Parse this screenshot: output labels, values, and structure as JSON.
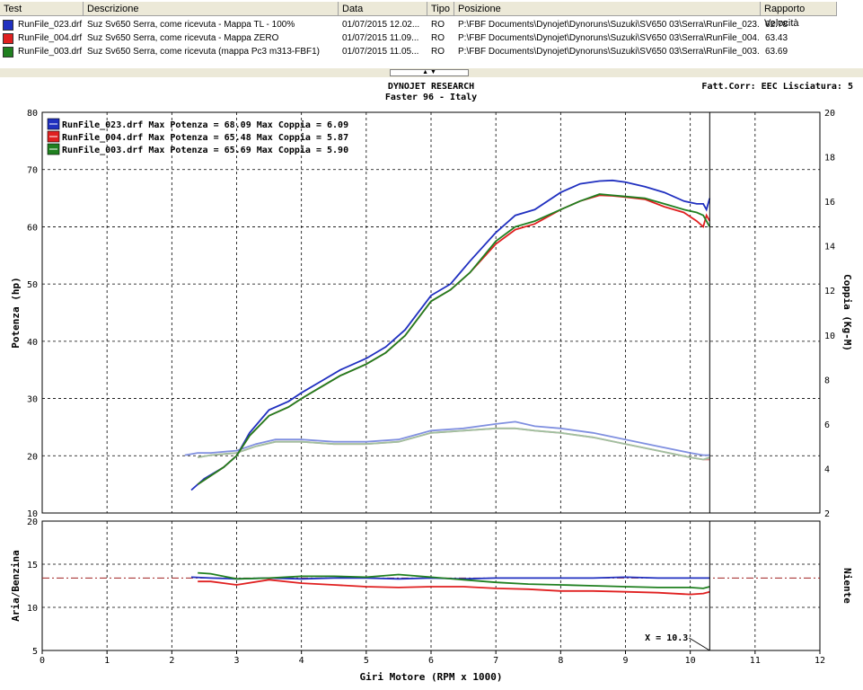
{
  "table": {
    "headers": [
      "Test",
      "Descrizione",
      "Data",
      "Tipo",
      "Posizione",
      "Rapporto Velocità"
    ],
    "rows": [
      {
        "test": "RunFile_023.drf",
        "desc": "Suz Sv650 Serra, come ricevuta - Mappa TL - 100%",
        "date": "01/07/2015 12.02...",
        "tipo": "RO",
        "pos": "P:\\FBF Documents\\Dynojet\\Dynoruns\\Suzuki\\SV650 03\\Serra\\RunFile_023....",
        "ratio": "62.78",
        "color": "#2030c0"
      },
      {
        "test": "RunFile_004.drf",
        "desc": "Suz Sv650 Serra, come ricevuta - Mappa ZERO",
        "date": "01/07/2015 11.09...",
        "tipo": "RO",
        "pos": "P:\\FBF Documents\\Dynojet\\Dynoruns\\Suzuki\\SV650 03\\Serra\\RunFile_004....",
        "ratio": "63.43",
        "color": "#e02020"
      },
      {
        "test": "RunFile_003.drf",
        "desc": "Suz Sv650 Serra, come ricevuta (mappa Pc3 m313-FBF1)",
        "date": "01/07/2015 11.05...",
        "tipo": "RO",
        "pos": "P:\\FBF Documents\\Dynojet\\Dynoruns\\Suzuki\\SV650 03\\Serra\\RunFile_003....",
        "ratio": "63.69",
        "color": "#208020"
      }
    ]
  },
  "splitter_label": "▲ ▼",
  "chart_data": {
    "type": "line",
    "title": "DYNOJET RESEARCH",
    "subtitle": "Faster 96 - Italy",
    "info": "Fatt.Corr: EEC  Lisciatura: 5",
    "xlabel": "Giri Motore (RPM x 1000)",
    "xlim": [
      0,
      12
    ],
    "xticks": [
      "0",
      "1",
      "2",
      "3",
      "4",
      "5",
      "6",
      "7",
      "8",
      "9",
      "10",
      "11",
      "12"
    ],
    "top": {
      "ylabel_left": "Potenza (hp)",
      "ylabel_right": "Coppia (Kg-M)",
      "ylim_left": [
        10,
        80
      ],
      "ylim_right": [
        2,
        20
      ],
      "yticks_left": [
        "10",
        "20",
        "30",
        "40",
        "50",
        "60",
        "70",
        "80"
      ],
      "yticks_right": [
        "2",
        "4",
        "6",
        "8",
        "10",
        "12",
        "14",
        "16",
        "18",
        "20"
      ],
      "legend": [
        "RunFile_023.drf Max Potenza = 68.09 Max Coppia = 6.09",
        "RunFile_004.drf Max Potenza = 65.48 Max Coppia = 5.87",
        "RunFile_003.drf Max Potenza = 65.69 Max Coppia = 5.90"
      ],
      "legend_position": "top-left",
      "power_series": [
        {
          "color": "#2030c0",
          "x": [
            2.3,
            2.5,
            2.8,
            3.0,
            3.2,
            3.5,
            3.8,
            4.0,
            4.3,
            4.6,
            5.0,
            5.3,
            5.6,
            6.0,
            6.3,
            6.6,
            7.0,
            7.3,
            7.6,
            8.0,
            8.3,
            8.6,
            8.8,
            9.0,
            9.3,
            9.6,
            9.9,
            10.1,
            10.2,
            10.25,
            10.3
          ],
          "y": [
            14,
            16,
            18,
            20,
            24,
            28,
            29.5,
            31,
            33,
            35,
            37,
            39,
            42,
            48,
            50,
            54,
            59,
            62,
            63,
            66,
            67.5,
            68,
            68.1,
            67.8,
            67,
            66,
            64.5,
            64,
            64,
            63,
            65
          ]
        },
        {
          "color": "#e02020",
          "x": [
            2.4,
            2.6,
            2.8,
            3.0,
            3.2,
            3.5,
            3.8,
            4.0,
            4.3,
            4.6,
            5.0,
            5.3,
            5.6,
            6.0,
            6.3,
            6.6,
            7.0,
            7.3,
            7.6,
            8.0,
            8.3,
            8.6,
            8.8,
            9.0,
            9.3,
            9.6,
            9.9,
            10.1,
            10.2,
            10.25,
            10.3
          ],
          "y": [
            15,
            16.5,
            18,
            20,
            23.5,
            27,
            28.5,
            30,
            32,
            34,
            36,
            38,
            41,
            47,
            49,
            52,
            57,
            59.5,
            60.5,
            63,
            64.5,
            65.5,
            65.4,
            65.2,
            64.8,
            63.5,
            62.5,
            61,
            60,
            62,
            61
          ]
        },
        {
          "color": "#208020",
          "x": [
            2.4,
            2.6,
            2.8,
            3.0,
            3.2,
            3.5,
            3.8,
            4.0,
            4.3,
            4.6,
            5.0,
            5.3,
            5.6,
            6.0,
            6.3,
            6.6,
            7.0,
            7.3,
            7.6,
            8.0,
            8.3,
            8.6,
            8.8,
            9.0,
            9.3,
            9.6,
            9.9,
            10.1,
            10.2,
            10.3
          ],
          "y": [
            15,
            16.5,
            18,
            20,
            23.5,
            27,
            28.5,
            30,
            32,
            34,
            36,
            38,
            41,
            47,
            49,
            52,
            57.5,
            60,
            61,
            63,
            64.5,
            65.7,
            65.5,
            65.3,
            65,
            64,
            63,
            62.5,
            62,
            60
          ]
        }
      ],
      "torque_series": [
        {
          "color": "#8090e0",
          "x": [
            2.2,
            2.4,
            2.6,
            3.0,
            3.3,
            3.6,
            4.0,
            4.5,
            5.0,
            5.5,
            6.0,
            6.5,
            7.0,
            7.3,
            7.6,
            8.0,
            8.5,
            9.0,
            9.5,
            10.0,
            10.2,
            10.3
          ],
          "y": [
            4.6,
            4.7,
            4.7,
            4.8,
            5.1,
            5.3,
            5.3,
            5.2,
            5.2,
            5.3,
            5.7,
            5.8,
            6.0,
            6.1,
            5.9,
            5.8,
            5.6,
            5.3,
            5.0,
            4.7,
            4.6,
            4.6
          ]
        },
        {
          "color": "#e09090",
          "x": [
            2.4,
            2.6,
            3.0,
            3.3,
            3.6,
            4.0,
            4.5,
            5.0,
            5.5,
            6.0,
            6.5,
            7.0,
            7.3,
            7.6,
            8.0,
            8.5,
            9.0,
            9.5,
            10.0,
            10.2,
            10.3
          ],
          "y": [
            4.5,
            4.6,
            4.7,
            5.0,
            5.2,
            5.2,
            5.1,
            5.1,
            5.2,
            5.6,
            5.7,
            5.8,
            5.8,
            5.7,
            5.6,
            5.4,
            5.1,
            4.8,
            4.5,
            4.4,
            4.4
          ]
        },
        {
          "color": "#a0c0a0",
          "x": [
            2.4,
            2.6,
            3.0,
            3.3,
            3.6,
            4.0,
            4.5,
            5.0,
            5.5,
            6.0,
            6.5,
            7.0,
            7.3,
            7.6,
            8.0,
            8.5,
            9.0,
            9.5,
            10.0,
            10.2,
            10.3
          ],
          "y": [
            4.5,
            4.6,
            4.7,
            5.0,
            5.2,
            5.2,
            5.1,
            5.1,
            5.2,
            5.6,
            5.7,
            5.8,
            5.8,
            5.7,
            5.6,
            5.4,
            5.1,
            4.8,
            4.5,
            4.4,
            4.5
          ]
        }
      ],
      "cursor_x": 10.3
    },
    "bottom": {
      "ylabel_left": "Aria/Benzina",
      "ylabel_right": "Niente",
      "ylim": [
        5,
        20
      ],
      "yticks": [
        "5",
        "10",
        "15",
        "20"
      ],
      "reference_line": 13.4,
      "cursor_label": "X = 10.3",
      "afr_series": [
        {
          "color": "#2030c0",
          "x": [
            2.3,
            2.6,
            3.0,
            3.5,
            4.0,
            4.5,
            5.0,
            5.5,
            6.0,
            6.5,
            7.0,
            7.5,
            8.0,
            8.5,
            9.0,
            9.5,
            10.0,
            10.3
          ],
          "y": [
            13.5,
            13.4,
            13.3,
            13.4,
            13.3,
            13.4,
            13.4,
            13.3,
            13.4,
            13.3,
            13.4,
            13.4,
            13.4,
            13.4,
            13.5,
            13.4,
            13.4,
            13.4
          ]
        },
        {
          "color": "#e02020",
          "x": [
            2.4,
            2.6,
            3.0,
            3.5,
            4.0,
            4.5,
            5.0,
            5.5,
            6.0,
            6.5,
            7.0,
            7.5,
            8.0,
            8.5,
            9.0,
            9.5,
            10.0,
            10.2,
            10.3
          ],
          "y": [
            13.0,
            13.0,
            12.6,
            13.2,
            12.8,
            12.6,
            12.4,
            12.3,
            12.4,
            12.4,
            12.2,
            12.1,
            11.9,
            11.9,
            11.8,
            11.7,
            11.5,
            11.6,
            11.8
          ]
        },
        {
          "color": "#208020",
          "x": [
            2.4,
            2.6,
            3.0,
            3.5,
            4.0,
            4.5,
            5.0,
            5.5,
            6.0,
            6.5,
            7.0,
            7.5,
            8.0,
            8.5,
            9.0,
            9.5,
            10.0,
            10.2,
            10.3
          ],
          "y": [
            14.0,
            13.9,
            13.3,
            13.4,
            13.6,
            13.6,
            13.5,
            13.8,
            13.5,
            13.2,
            12.9,
            12.7,
            12.6,
            12.5,
            12.4,
            12.3,
            12.3,
            12.2,
            12.4
          ]
        }
      ]
    }
  }
}
